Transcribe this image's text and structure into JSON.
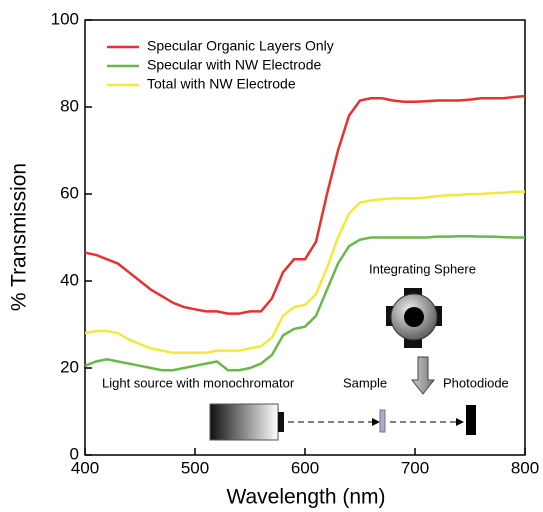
{
  "chart_data": {
    "type": "line",
    "xlabel": "Wavelength (nm)",
    "ylabel": "% Transmission",
    "x": [
      400,
      410,
      420,
      430,
      440,
      450,
      460,
      470,
      480,
      490,
      500,
      510,
      520,
      530,
      540,
      550,
      560,
      570,
      580,
      590,
      600,
      610,
      620,
      630,
      640,
      650,
      660,
      670,
      680,
      690,
      700,
      710,
      720,
      730,
      740,
      750,
      760,
      770,
      780,
      790,
      800
    ],
    "series": [
      {
        "name": "Specular Organic Layers Only",
        "color": "#e8312f",
        "values": [
          46.5,
          46,
          45,
          44,
          42,
          40,
          38,
          36.5,
          35,
          34,
          33.5,
          33,
          33,
          32.5,
          32.5,
          33,
          33,
          36,
          42,
          45,
          45,
          49,
          60,
          70,
          78,
          81.5,
          82,
          82,
          81.5,
          81.2,
          81.2,
          81.3,
          81.5,
          81.5,
          81.5,
          81.7,
          82,
          82,
          82,
          82.3,
          82.5
        ]
      },
      {
        "name": "Specular with NW Electrode",
        "color": "#6ab84a",
        "values": [
          20.5,
          21.5,
          22,
          21.5,
          21,
          20.5,
          20,
          19.5,
          19.5,
          20,
          20.5,
          21,
          21.5,
          19.5,
          19.5,
          20,
          21,
          23,
          27.5,
          29,
          29.5,
          32,
          38,
          44,
          48,
          49.5,
          50,
          50,
          50,
          50,
          50,
          50,
          50.2,
          50.2,
          50.3,
          50.3,
          50.2,
          50.2,
          50.1,
          50,
          50
        ]
      },
      {
        "name": "Total with NW Electrode",
        "color": "#f2e93a",
        "values": [
          28,
          28.5,
          28.5,
          28,
          26.5,
          25.5,
          24.5,
          24,
          23.5,
          23.5,
          23.5,
          23.5,
          24,
          24,
          24,
          24.5,
          25,
          27,
          32,
          34,
          34.5,
          37,
          43,
          50,
          55.5,
          58,
          58.5,
          58.8,
          59,
          59,
          59,
          59.2,
          59.5,
          59.7,
          59.8,
          60,
          60,
          60.2,
          60.3,
          60.5,
          60.5
        ]
      }
    ],
    "xlim": [
      400,
      800
    ],
    "xticks": [
      400,
      500,
      600,
      700,
      800
    ],
    "ylim": [
      0,
      100
    ],
    "yticks": [
      0,
      20,
      40,
      60,
      80,
      100
    ],
    "legend": "upper left",
    "annotations": [
      "Integrating Sphere",
      "Light source with monochromator",
      "Sample",
      "Photodiode"
    ]
  }
}
